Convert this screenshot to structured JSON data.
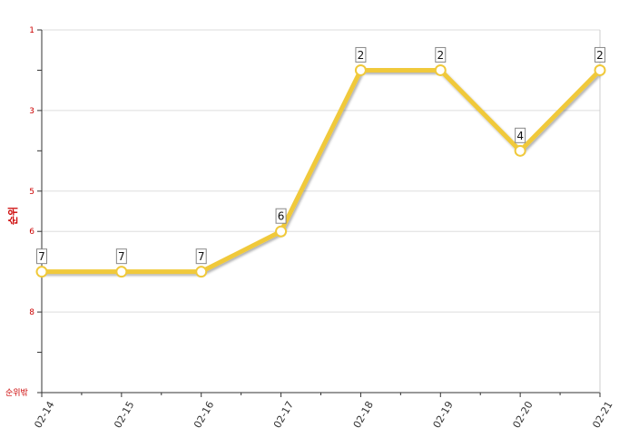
{
  "chart_data": {
    "type": "line",
    "title": "",
    "xlabel": "",
    "ylabel": "순위",
    "y_out_of_range_label": "순위밖",
    "y_reversed": true,
    "ylim": [
      1,
      10
    ],
    "y_ticks": [
      "1",
      "3",
      "5",
      "6",
      "8"
    ],
    "categories": [
      "02-14",
      "02-15",
      "02-16",
      "02-17",
      "02-18",
      "02-19",
      "02-20",
      "02-21"
    ],
    "series": [
      {
        "values": [
          7,
          7,
          7,
          6,
          2,
          2,
          4,
          2
        ],
        "labels": [
          "7",
          "7",
          "7",
          "6",
          "2",
          "2",
          "4",
          "2"
        ]
      }
    ],
    "grid": true,
    "colors": {
      "line": "#f0c93a",
      "marker_fill": "#ffffff",
      "axis_text": "#cc0000",
      "grid": "#dddddd"
    }
  }
}
